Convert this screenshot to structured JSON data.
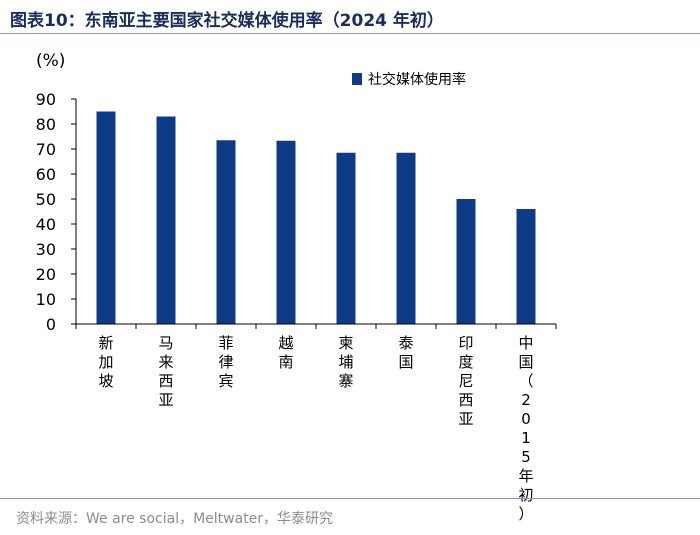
{
  "figure": {
    "label": "图表10：",
    "title": "东南亚主要国家社交媒体使用率（2024 年初）"
  },
  "source": "资料来源：We are social，Meltwater，华泰研究",
  "colors": {
    "bar": "#0f3b86",
    "axis": "#000000",
    "rule": "#7f9cbf"
  },
  "chart_data": {
    "type": "bar",
    "title": "东南亚主要国家社交媒体使用率（2024 年初）",
    "unit_label": "(%)",
    "xlabel": "",
    "ylabel": "",
    "ylim": [
      0,
      90
    ],
    "yticks": [
      0,
      10,
      20,
      30,
      40,
      50,
      60,
      70,
      80,
      90
    ],
    "grid": false,
    "legend_position": "top-right",
    "categories": [
      "新加坡",
      "马来西亚",
      "菲律宾",
      "越南",
      "柬埔寨",
      "泰国",
      "印度尼西亚",
      "中国（2015年初）"
    ],
    "series": [
      {
        "name": "社交媒体使用率",
        "values": [
          85,
          83,
          73.5,
          73.3,
          68.5,
          68.5,
          50,
          46
        ]
      }
    ]
  }
}
